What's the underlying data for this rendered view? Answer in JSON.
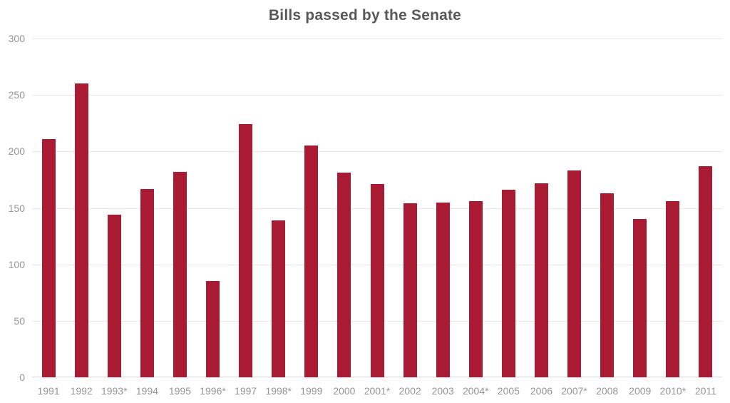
{
  "chart_data": {
    "type": "bar",
    "title": "Bills passed by the Senate",
    "categories": [
      "1991",
      "1992",
      "1993*",
      "1994",
      "1995",
      "1996*",
      "1997",
      "1998*",
      "1999",
      "2000",
      "2001*",
      "2002",
      "2003",
      "2004*",
      "2005",
      "2006",
      "2007*",
      "2008",
      "2009",
      "2010*",
      "2011"
    ],
    "values": [
      211,
      260,
      144,
      167,
      182,
      85,
      224,
      139,
      205,
      181,
      171,
      154,
      155,
      156,
      166,
      172,
      183,
      163,
      140,
      156,
      187
    ],
    "xlabel": "",
    "ylabel": "",
    "ylim": [
      0,
      300
    ],
    "yticks": [
      0,
      50,
      100,
      150,
      200,
      250,
      300
    ],
    "grid": true,
    "legend": false,
    "colors": {
      "bar": "#A91B33",
      "title": "#58585A",
      "tick_label": "#969696",
      "gridline": "#E8E8E8",
      "baseline": "#D6D6D6"
    }
  }
}
